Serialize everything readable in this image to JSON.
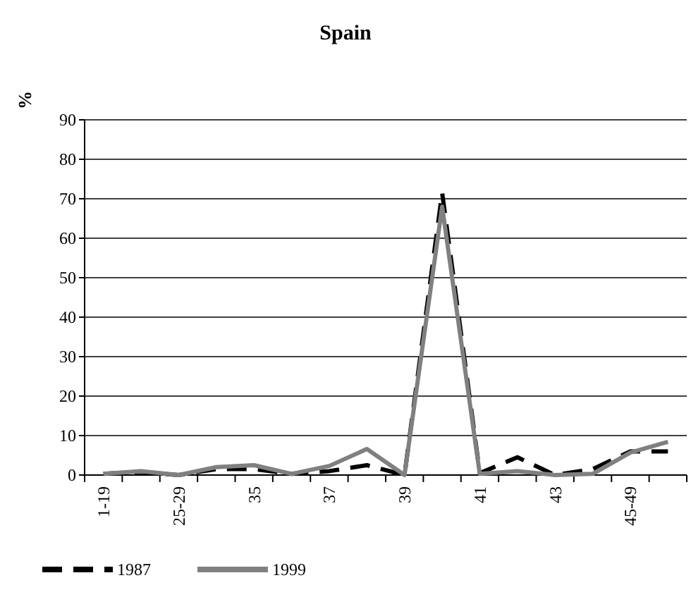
{
  "chart_data": {
    "type": "line",
    "title": "Spain",
    "ylabel": "%",
    "categories": [
      "1-19",
      null,
      "25-29",
      null,
      "35",
      null,
      "37",
      null,
      "39",
      null,
      "41",
      null,
      "43",
      null,
      "45-49",
      null
    ],
    "series": [
      {
        "name": "1987",
        "color": "#000000",
        "line_style": "dashed",
        "values": [
          0.3,
          0.8,
          0,
          1.5,
          1.5,
          0.3,
          1,
          2.5,
          0,
          71.5,
          0.5,
          4.5,
          0,
          1.5,
          6,
          6
        ]
      },
      {
        "name": "1999",
        "color": "#808080",
        "line_style": "solid",
        "values": [
          0.3,
          1,
          0,
          2,
          2.5,
          0.3,
          2.3,
          6.6,
          0,
          68,
          0.3,
          1,
          0,
          0.3,
          5.7,
          8.4
        ]
      }
    ],
    "ylim": [
      0,
      90
    ],
    "yticks": [
      0,
      10,
      20,
      30,
      40,
      50,
      60,
      70,
      80,
      90
    ],
    "grid": "y",
    "legend": "bottom left",
    "marker": "none"
  }
}
